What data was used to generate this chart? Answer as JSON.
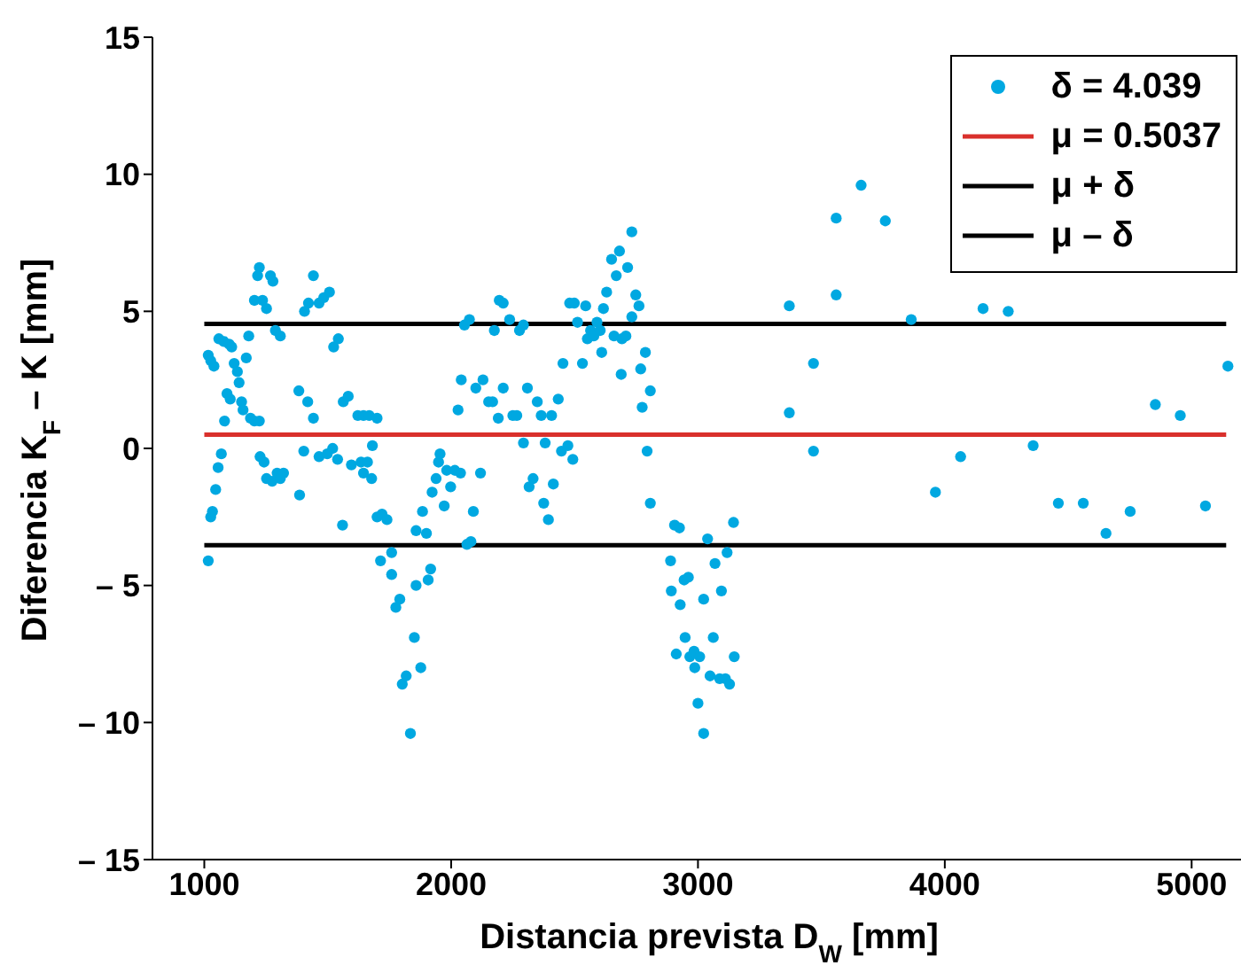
{
  "chart_data": {
    "type": "scatter",
    "xlabel": "Distancia prevista D$_{W}$ [mm]",
    "ylabel": "Diferencia K$_{F}$ – K [mm]",
    "xlim": [
      790,
      5200
    ],
    "xticks": [
      1000,
      2000,
      3000,
      4000,
      5000
    ],
    "ylim": [
      -15,
      15
    ],
    "yticks": [
      {
        "value": -15,
        "label": "– 15"
      },
      {
        "value": -10,
        "label": "– 10"
      },
      {
        "value": -5,
        "label": "– 5"
      },
      0,
      5,
      10,
      15
    ],
    "legend": "top right",
    "series": [
      {
        "name": "δ = 4.039",
        "marker": "circle",
        "color": "#00a8e1",
        "x": [
          1016,
          1016,
          1026,
          1039,
          1026,
          1033,
          1046,
          1056,
          1069,
          1059,
          1079,
          1101,
          1111,
          1082,
          1092,
          1105,
          1121,
          1134,
          1141,
          1151,
          1157,
          1170,
          1180,
          1187,
          1203,
          1223,
          1203,
          1216,
          1223,
          1236,
          1252,
          1268,
          1278,
          1288,
          1308,
          1226,
          1242,
          1252,
          1275,
          1295,
          1308,
          1321,
          1386,
          1403,
          1383,
          1419,
          1442,
          1406,
          1422,
          1442,
          1465,
          1484,
          1507,
          1465,
          1498,
          1520,
          1540,
          1560,
          1524,
          1543,
          1563,
          1583,
          1596,
          1622,
          1645,
          1668,
          1700,
          1635,
          1645,
          1661,
          1678,
          1681,
          1700,
          1720,
          1740,
          1714,
          1759,
          1759,
          1776,
          1792,
          1802,
          1818,
          1835,
          1851,
          1858,
          1858,
          1877,
          1884,
          1900,
          1907,
          1917,
          1923,
          1939,
          1949,
          1955,
          1972,
          1982,
          1998,
          2015,
          2028,
          2038,
          2041,
          2054,
          2064,
          2074,
          2080,
          2090,
          2100,
          2119,
          2129,
          2152,
          2168,
          2175,
          2191,
          2195,
          2211,
          2211,
          2237,
          2250,
          2266,
          2277,
          2293,
          2293,
          2309,
          2316,
          2332,
          2349,
          2365,
          2375,
          2381,
          2394,
          2407,
          2414,
          2434,
          2447,
          2453,
          2473,
          2480,
          2493,
          2499,
          2512,
          2532,
          2545,
          2552,
          2565,
          2578,
          2591,
          2604,
          2610,
          2617,
          2630,
          2650,
          2660,
          2669,
          2682,
          2689,
          2692,
          2708,
          2715,
          2732,
          2732,
          2748,
          2761,
          2768,
          2774,
          2787,
          2794,
          2807,
          2807,
          2889,
          2892,
          2905,
          2912,
          2925,
          2928,
          2944,
          2948,
          2961,
          2967,
          2984,
          2987,
          3000,
          3007,
          3023,
          3023,
          3039,
          3049,
          3062,
          3069,
          3088,
          3095,
          3111,
          3118,
          3128,
          3144,
          3147,
          3370,
          3370,
          3468,
          3468,
          3560,
          3560,
          3661,
          3759,
          3864,
          3962,
          4064,
          4155,
          4257,
          4358,
          4460,
          4561,
          4653,
          4751,
          4853,
          4954,
          5056,
          5147
        ],
        "values": [
          -4.1,
          3.4,
          3.2,
          3.0,
          -2.5,
          -2.3,
          -1.5,
          -0.7,
          -0.2,
          4.0,
          3.9,
          3.8,
          3.7,
          1.0,
          2.0,
          1.8,
          3.1,
          2.8,
          2.4,
          1.7,
          1.4,
          3.3,
          4.1,
          1.1,
          1.0,
          1.0,
          5.4,
          6.3,
          6.6,
          5.4,
          5.1,
          6.3,
          6.1,
          4.3,
          4.1,
          -0.3,
          -0.5,
          -1.1,
          -1.2,
          -0.9,
          -1.1,
          -0.9,
          -1.7,
          -0.1,
          2.1,
          1.7,
          1.1,
          5.0,
          5.3,
          6.3,
          5.3,
          5.5,
          5.7,
          -0.3,
          -0.2,
          0.0,
          -0.4,
          -2.8,
          3.7,
          4.0,
          1.7,
          1.9,
          -0.6,
          1.2,
          1.2,
          1.2,
          1.1,
          -0.5,
          -0.9,
          -0.5,
          -1.1,
          0.1,
          -2.5,
          -2.4,
          -2.6,
          -4.1,
          -3.8,
          -4.6,
          -5.8,
          -5.5,
          -8.6,
          -8.3,
          -10.4,
          -6.9,
          -5.0,
          -3.0,
          -8.0,
          -2.3,
          -3.1,
          -4.8,
          -4.4,
          -1.6,
          -1.1,
          -0.5,
          -0.2,
          -2.1,
          -0.8,
          -1.4,
          -0.8,
          1.4,
          -0.9,
          2.5,
          4.5,
          -3.5,
          4.7,
          -3.4,
          -2.3,
          2.2,
          -0.9,
          2.5,
          1.7,
          1.7,
          4.3,
          1.1,
          5.4,
          5.3,
          2.2,
          4.7,
          1.2,
          1.2,
          4.3,
          4.5,
          0.2,
          2.2,
          -1.4,
          -1.1,
          1.7,
          1.2,
          -2.0,
          0.2,
          -2.6,
          1.2,
          -1.3,
          1.8,
          -0.1,
          3.1,
          0.1,
          5.3,
          -0.4,
          5.3,
          4.6,
          3.1,
          5.2,
          4.0,
          4.3,
          4.1,
          4.6,
          4.3,
          3.5,
          5.1,
          5.7,
          6.9,
          4.1,
          6.3,
          7.2,
          2.7,
          4.0,
          4.1,
          6.6,
          7.9,
          4.8,
          5.6,
          5.2,
          2.9,
          1.5,
          3.5,
          -0.1,
          2.1,
          -2.0,
          -4.1,
          -5.2,
          -2.8,
          -7.5,
          -2.9,
          -5.7,
          -4.8,
          -6.9,
          -4.7,
          -7.6,
          -7.4,
          -8.0,
          -9.3,
          -7.6,
          -5.5,
          -10.4,
          -3.3,
          -8.3,
          -6.9,
          -4.2,
          -8.4,
          -5.2,
          -8.4,
          -3.8,
          -8.6,
          -2.7,
          -7.6,
          5.2,
          1.3,
          3.1,
          -0.1,
          8.4,
          5.6,
          9.6,
          8.3,
          4.7,
          -1.6,
          -0.3,
          5.1,
          5.0,
          0.1,
          -2.0,
          -2.0,
          -3.1,
          -2.3,
          1.6,
          1.2,
          -2.1,
          3.0
        ]
      },
      {
        "name": "μ = 0.5037",
        "type": "line",
        "marker": "none",
        "color": "#d9302c",
        "x": [
          1000,
          5140
        ],
        "values": [
          0.5037,
          0.5037
        ]
      },
      {
        "name": "μ + δ",
        "type": "line",
        "marker": "none",
        "color": "#000000",
        "x": [
          1000,
          5140
        ],
        "values": [
          4.5427,
          4.5427
        ]
      },
      {
        "name": "μ – δ",
        "type": "line",
        "marker": "none",
        "color": "#000000",
        "x": [
          1000,
          5140
        ],
        "values": [
          -3.5353,
          -3.5353
        ]
      }
    ]
  }
}
